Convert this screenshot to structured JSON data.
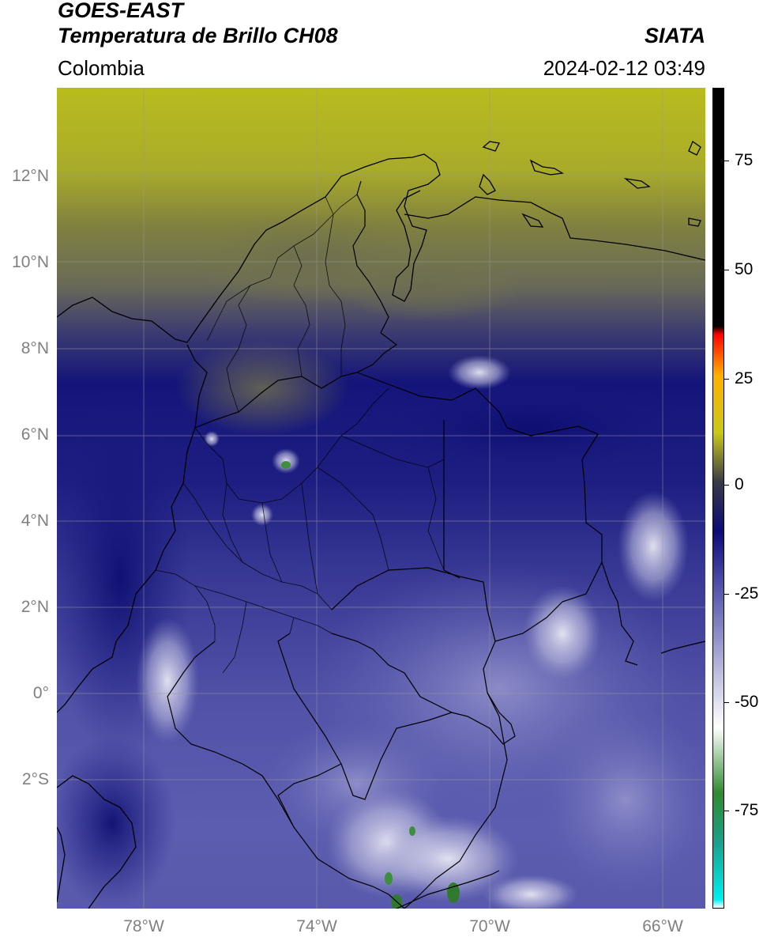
{
  "header": {
    "satellite": "GOES-EAST",
    "product": "Temperatura de Brillo CH08",
    "region": "Colombia",
    "brand": "SIATA",
    "timestamp": "2024-02-12 03:49"
  },
  "axes": {
    "lat_labels": [
      "12°N",
      "10°N",
      "8°N",
      "6°N",
      "4°N",
      "2°N",
      "0°",
      "2°S"
    ],
    "lon_labels": [
      "78°W",
      "74°W",
      "70°W",
      "66°W"
    ]
  },
  "colorbar": {
    "labels": [
      "75",
      "50",
      "25",
      "0",
      "-25",
      "-50",
      "-75"
    ],
    "stops": [
      "#00f0f0",
      "#1aa08a",
      "#2f8a2f",
      "#ffffff",
      "#b0b0d8",
      "#4a4aa8",
      "#0b0b78",
      "#3a3a46",
      "#c8c818",
      "#ffb000",
      "#ff0000",
      "#000000"
    ]
  },
  "colors": {
    "ocean_north": "#b8bb1e",
    "cloud_cold": "#1a1a80",
    "land_mid": "#4f4fa0",
    "clear_light": "#8a8ac4"
  }
}
